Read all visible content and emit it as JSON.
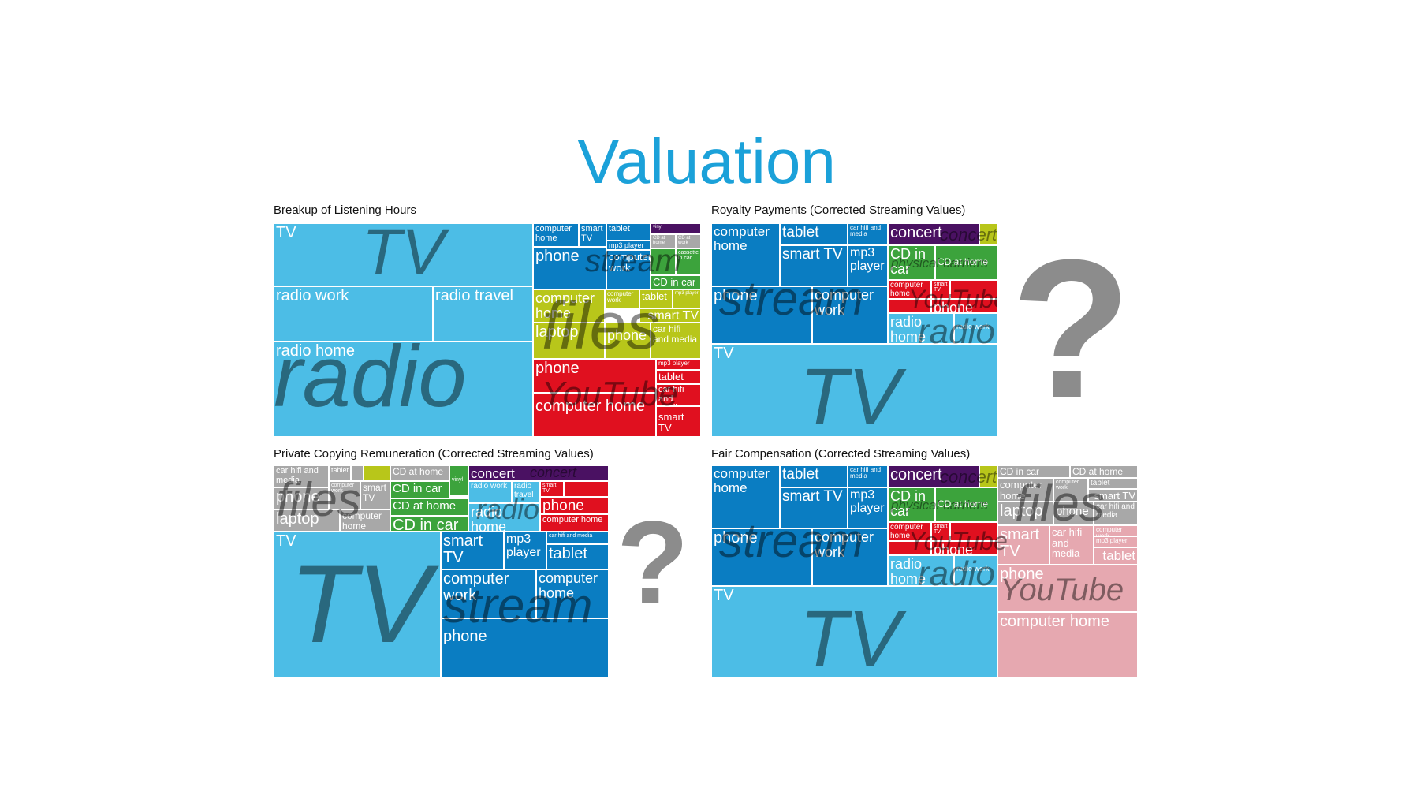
{
  "page": {
    "title": "Valuation"
  },
  "colors": {
    "tv": "#4cbde6",
    "stream": "#0a7dc2",
    "files": "#b8c61a",
    "youtube": "#e0101f",
    "concert": "#4a1162",
    "physical": "#3ca33c",
    "files_gray": "#a8a8a8",
    "youtube_pink": "#e6a8b0"
  },
  "question_marks": [
    "?",
    "?"
  ],
  "chart_data": [
    {
      "type": "treemap",
      "title": "Breakup of Listening Hours",
      "groups": [
        {
          "name": "radio",
          "items": [
            "radio work",
            "radio travel",
            "radio home"
          ]
        },
        {
          "name": "TV",
          "items": [
            "TV"
          ]
        },
        {
          "name": "stream",
          "items": [
            "computer home",
            "smart TV",
            "tablet",
            "mp3 player",
            "phone",
            "computer work"
          ]
        },
        {
          "name": "files",
          "items": [
            "computer home",
            "computer work",
            "tablet",
            "mp3 player",
            "smart TV",
            "laptop",
            "phone",
            "car hifi and media"
          ]
        },
        {
          "name": "YouTube",
          "items": [
            "phone",
            "mp3 player",
            "tablet",
            "car hifi and media",
            "computer home",
            "smart TV"
          ]
        },
        {
          "name": "physical",
          "items": [
            "vinyl",
            "CD at home",
            "CD at work",
            "cassette in car",
            "CD in car"
          ]
        }
      ]
    },
    {
      "type": "treemap",
      "title": "Royalty Payments (Corrected Streaming Values)",
      "groups": [
        {
          "name": "stream",
          "items": [
            "computer home",
            "tablet",
            "car hifi and media",
            "smart TV",
            "mp3 player",
            "phone",
            "computer work"
          ]
        },
        {
          "name": "TV",
          "items": [
            "TV"
          ]
        },
        {
          "name": "concert",
          "items": [
            "concert"
          ]
        },
        {
          "name": "physical carriers",
          "items": [
            "CD in car",
            "CD at home"
          ]
        },
        {
          "name": "YouTube",
          "items": [
            "computer home",
            "smart TV",
            "phone"
          ]
        },
        {
          "name": "radio",
          "items": [
            "radio home",
            "radio work"
          ]
        }
      ]
    },
    {
      "type": "treemap",
      "title": "Private Copying Remuneration (Corrected Streaming Values)",
      "groups": [
        {
          "name": "files",
          "items": [
            "car hifi and media",
            "tablet",
            "phone",
            "computer work",
            "smart TV",
            "laptop",
            "computer home"
          ]
        },
        {
          "name": "physical",
          "items": [
            "CD at home",
            "vinyl",
            "CD in car",
            "CD at home",
            "CD in car"
          ]
        },
        {
          "name": "concert",
          "items": [
            "concert"
          ]
        },
        {
          "name": "radio",
          "items": [
            "radio work",
            "radio travel",
            "radio home"
          ]
        },
        {
          "name": "YouTube",
          "items": [
            "smart TV",
            "phone",
            "computer home"
          ]
        },
        {
          "name": "TV",
          "items": [
            "TV"
          ]
        },
        {
          "name": "stream",
          "items": [
            "smart TV",
            "mp3 player",
            "car hifi and media",
            "tablet",
            "computer work",
            "computer home",
            "phone"
          ]
        }
      ]
    },
    {
      "type": "treemap",
      "title": "Fair Compensation (Corrected Streaming Values)",
      "groups": [
        {
          "name": "stream",
          "items": [
            "computer home",
            "tablet",
            "car hifi and media",
            "smart TV",
            "mp3 player",
            "phone",
            "computer work"
          ]
        },
        {
          "name": "TV",
          "items": [
            "TV"
          ]
        },
        {
          "name": "concert",
          "items": [
            "concert"
          ]
        },
        {
          "name": "physical carriers",
          "items": [
            "CD in car",
            "CD at home"
          ]
        },
        {
          "name": "YouTube",
          "items": [
            "computer home",
            "smart TV",
            "phone"
          ]
        },
        {
          "name": "radio",
          "items": [
            "radio home",
            "radio work"
          ]
        },
        {
          "name": "files",
          "items": [
            "CD in car",
            "CD at home",
            "computer home",
            "computer work",
            "tablet",
            "laptop",
            "phone",
            "smart TV",
            "car hifi and media",
            "computer work",
            "mp3 player",
            "tablet"
          ]
        },
        {
          "name": "YouTube",
          "items": [
            "phone",
            "computer home"
          ]
        }
      ]
    }
  ]
}
